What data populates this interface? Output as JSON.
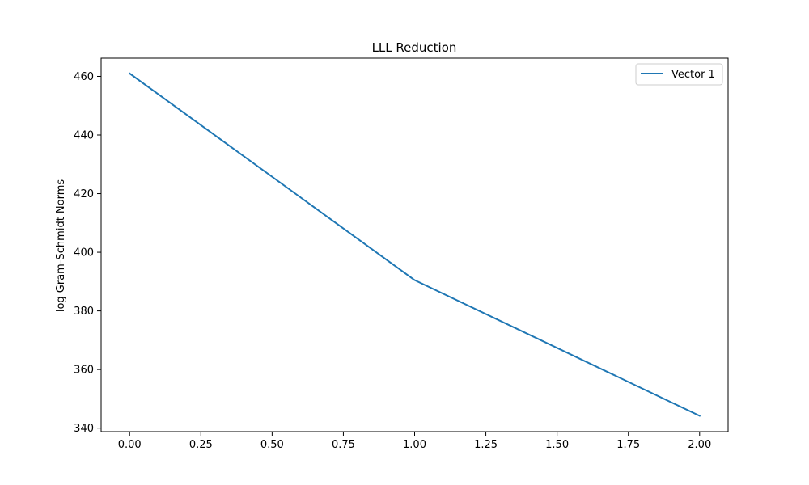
{
  "chart_data": {
    "type": "line",
    "title": "LLL Reduction",
    "xlabel": "",
    "ylabel": "log Gram-Schmidt Norms",
    "xlim": [
      -0.1,
      2.1
    ],
    "ylim": [
      338.8,
      466.2
    ],
    "x_ticks": [
      0.0,
      0.25,
      0.5,
      0.75,
      1.0,
      1.25,
      1.5,
      1.75,
      2.0
    ],
    "x_tick_labels": [
      "0.00",
      "0.25",
      "0.50",
      "0.75",
      "1.00",
      "1.25",
      "1.50",
      "1.75",
      "2.00"
    ],
    "y_ticks": [
      340,
      360,
      380,
      400,
      420,
      440,
      460
    ],
    "y_tick_labels": [
      "340",
      "360",
      "380",
      "400",
      "420",
      "440",
      "460"
    ],
    "grid": false,
    "legend_position": "top-right",
    "series": [
      {
        "name": "Vector 1",
        "color": "#1f77b4",
        "x": [
          0,
          1,
          2
        ],
        "y": [
          461.0,
          390.5,
          344.2
        ]
      }
    ]
  }
}
